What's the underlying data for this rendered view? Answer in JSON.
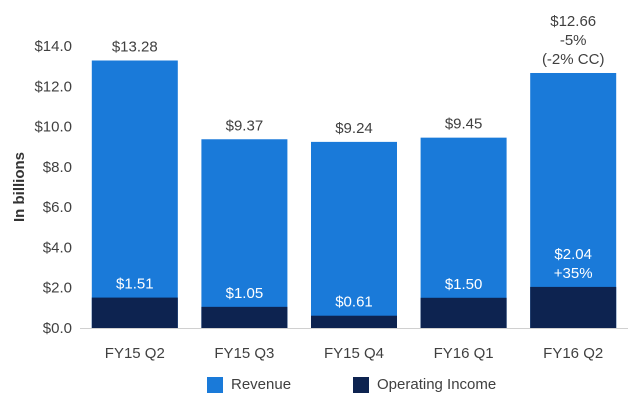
{
  "chart_data": {
    "type": "bar",
    "stacked": true,
    "ylabel": "In billions",
    "ylim": [
      0,
      14
    ],
    "yticks": [
      0,
      2,
      4,
      6,
      8,
      10,
      12,
      14
    ],
    "ytick_labels": [
      "$0.0",
      "$2.0",
      "$4.0",
      "$6.0",
      "$8.0",
      "$10.0",
      "$12.0",
      "$14.0"
    ],
    "grid": false,
    "legend_position": "bottom",
    "categories": [
      "FY15 Q2",
      "FY15 Q3",
      "FY15 Q4",
      "FY16 Q1",
      "FY16 Q2"
    ],
    "series": [
      {
        "name": "Revenue",
        "color": "#1a7ad9",
        "values": [
          13.28,
          9.37,
          9.24,
          9.45,
          12.66
        ],
        "labels": [
          [
            "$13.28"
          ],
          [
            "$9.37"
          ],
          [
            "$9.24"
          ],
          [
            "$9.45"
          ],
          [
            "$12.66",
            "-5%",
            "(-2% CC)"
          ]
        ]
      },
      {
        "name": "Operating Income",
        "color": "#0d2350",
        "values": [
          1.51,
          1.05,
          0.61,
          1.5,
          2.04
        ],
        "labels": [
          [
            "$1.51"
          ],
          [
            "$1.05"
          ],
          [
            "$0.61"
          ],
          [
            "$1.50"
          ],
          [
            "$2.04",
            "+35%"
          ]
        ]
      }
    ]
  },
  "legend": {
    "revenue_label": "Revenue",
    "operating_income_label": "Operating Income"
  }
}
